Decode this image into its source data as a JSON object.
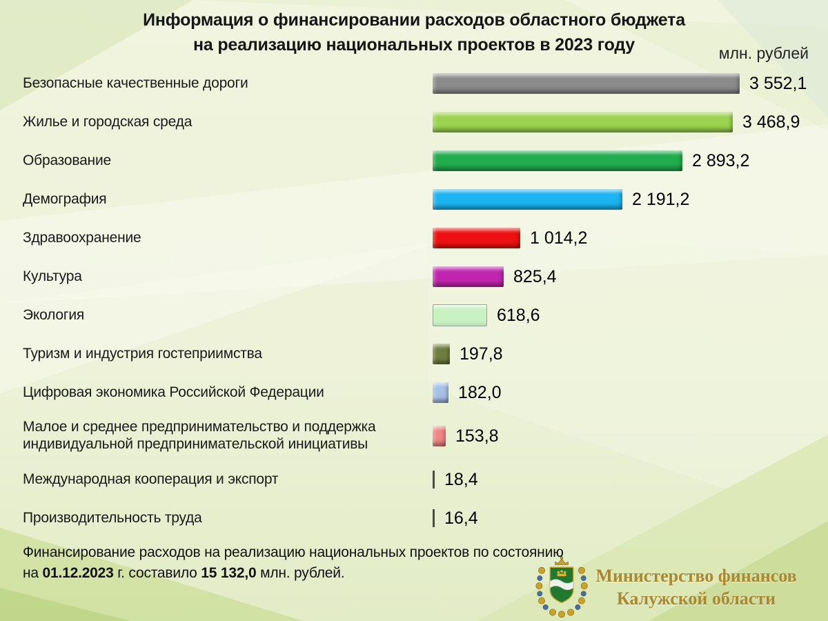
{
  "page": {
    "title_line1": "Информация о финансировании расходов областного бюджета",
    "title_line2": "на реализацию национальных проектов в 2023 году",
    "unit_label": "млн. рублей"
  },
  "chart_data": {
    "type": "bar",
    "orientation": "horizontal",
    "title": "Информация о финансировании расходов областного бюджета на реализацию национальных проектов в 2023 году",
    "unit": "млн. рублей",
    "xlim": [
      0,
      3600
    ],
    "grid": false,
    "legend": false,
    "categories": [
      "Безопасные качественные дороги",
      "Жилье и городская среда",
      "Образование",
      "Демография",
      "Здравоохранение",
      "Культура",
      "Экология",
      "Туризм и индустрия гостеприимства",
      "Цифровая экономика Российской Федерации",
      "Малое и среднее предпринимательство и поддержка индивидуальной предпринимательской инициативы",
      "Международная кооперация и экспорт",
      "Производительность труда"
    ],
    "values": [
      3552.1,
      3468.9,
      2893.2,
      2191.2,
      1014.2,
      825.4,
      618.6,
      197.8,
      182.0,
      153.8,
      18.4,
      16.4
    ],
    "value_labels": [
      "3 552,1",
      "3 468,9",
      "2 893,2",
      "2 191,2",
      "1 014,2",
      "825,4",
      "618,6",
      "197,8",
      "182,0",
      "153,8",
      "18,4",
      "16,4"
    ],
    "bar_colors": [
      "#8a8a8a",
      "#9cd34f",
      "#21ac4d",
      "#1cb4f0",
      "#ee1111",
      "#c125af",
      "#c9f2c3",
      "#6e7f3d",
      "#a6c0e8",
      "#f28585",
      "#4a4a4a",
      "#4a4a4a"
    ],
    "bar_styles": [
      "3d",
      "3d",
      "3d",
      "3d",
      "3d",
      "3d",
      "outlined",
      "3d",
      "3d",
      "3d",
      "thin",
      "thin"
    ]
  },
  "footer": {
    "segments": [
      {
        "text": "Финансирование  расходов на реализацию  национальных проектов по состоянию"
      },
      {
        "br": true
      },
      {
        "text": "на "
      },
      {
        "text": "01.12.2023",
        "bold": true
      },
      {
        "text": " г. составило "
      },
      {
        "text": "15 132,0",
        "bold": true
      },
      {
        "text": " млн. рублей."
      }
    ]
  },
  "logo": {
    "org_line1": "Министерство финансов",
    "org_line2": "Калужской области",
    "text_color": "#a9882f"
  },
  "colors": {
    "background_base": "#eef1d9",
    "text_primary": "#1a1a1a"
  }
}
